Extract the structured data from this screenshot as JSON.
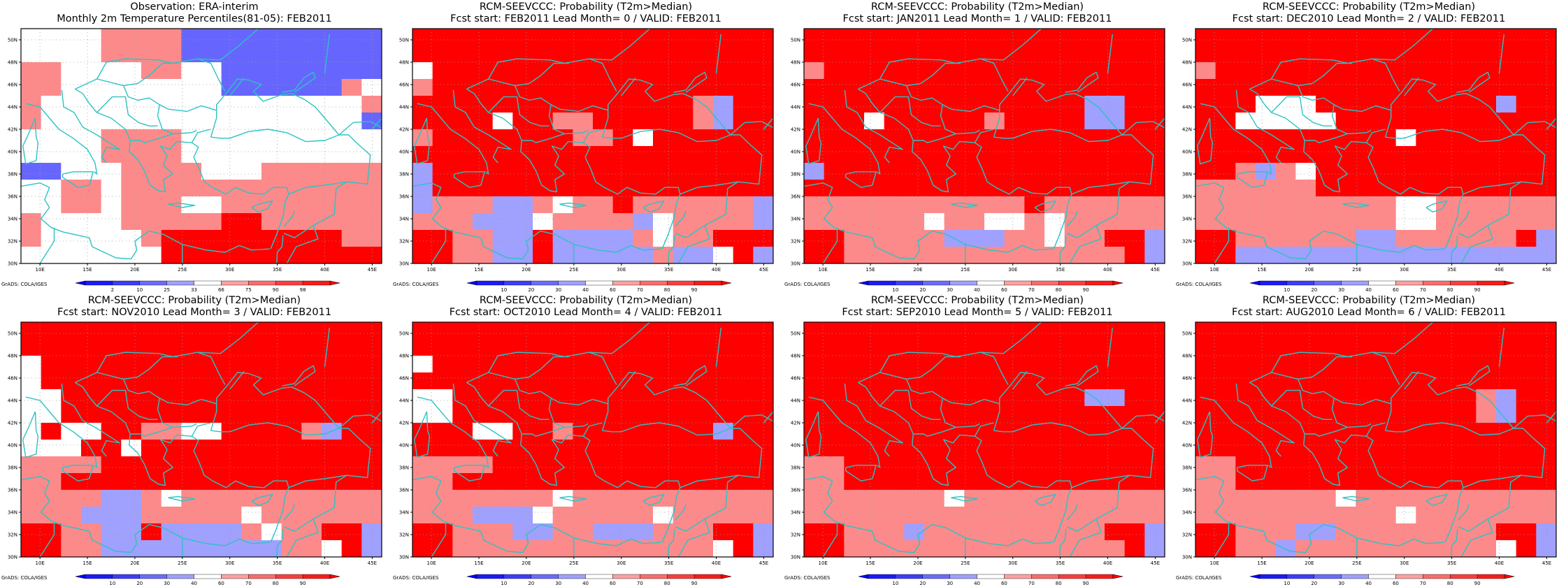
{
  "figure": {
    "panels": [
      {
        "title_line1": "Observation: ERA-interim",
        "title_line2": "Monthly 2m Temperature Percentiles(81-05): FEB2011",
        "colorbar_labels": [
          "2",
          "10",
          "25",
          "33",
          "66",
          "75",
          "90",
          "98"
        ],
        "colormap": "percentile",
        "grid": [
          "wwwwLLLLBBBBBBBBBB",
          "wwwwLLLLBBBBBBBBBB",
          "LLwwwwLLwwBBBBBBBB",
          "LLwwwwwwwwBBBBBBLw",
          "LwwwwwwwwwwwwwwwwL",
          "LwwwwwwwwwwwwwwwwB",
          "wwwwLLLLwwwwwwwwww",
          "wwwwLLLLwwwwwwwwww",
          "BBwwwLLLLwwwLLLLLL",
          "wwLLwLLLLLLLLLLLLL",
          "wwLLwLLLwwLLLLLLLL",
          "LwwwwLLLLLRRLLLLLL",
          "LwwwwwLRRRRRRRRRLL",
          "wwwwwwwRRRRRRRRRRR"
        ]
      },
      {
        "title_line1": "RCM-SEEVCCC: Probability (T2m>Median)",
        "title_line2": "Fcst start: FEB2011  Lead Month= 0 / VALID: FEB2011",
        "colorbar_labels": [
          "10",
          "20",
          "30",
          "40",
          "60",
          "70",
          "80",
          "90"
        ],
        "colormap": "probability",
        "grid": [
          "RRRRRRRRRRRRRRRRRR",
          "RRRRRRRRRRRRRRRRRR",
          "wRRRRRRRRRRRRRRRRR",
          "LRRRRRRRRRRRRRRRRR",
          "RRRRRRRRRRRRRRLBRR",
          "RRRRwRRLLRRRRRLBRR",
          "LRRRRRRRLLRwRRRRRR",
          "RRRRRRRRRRRRRRRRRR",
          "BRRRRRRRRRRRRRRRRR",
          "BRRRRRRRRRRRRRRRRR",
          "BLLLBBLwLLRLLLLLLB",
          "LLLBBBwLLLLBwLLLLB",
          "RRLLBBRBBBBLwLLRRR",
          "RRLLBBRBBBBBLBBwRB"
        ]
      },
      {
        "title_line1": "RCM-SEEVCCC: Probability (T2m>Median)",
        "title_line2": "Fcst start: JAN2011  Lead Month= 1 / VALID: FEB2011",
        "colorbar_labels": [
          "10",
          "20",
          "30",
          "40",
          "60",
          "70",
          "80",
          "90"
        ],
        "colormap": "probability",
        "grid": [
          "RRRRRRRRRRRRRRRRRR",
          "RRRRRRRRRRRRRRRRRR",
          "LRRRRRRRRRRRRRRRRR",
          "RRRRRRRRRRRRRRRRRR",
          "RRRRRRRRRRRRRRBBRR",
          "RRRwRRRRRLRRRRBBRR",
          "RRRRRRRRRRRRRRRRRR",
          "RRRRRRRRRRRRRRRRRR",
          "BRRRRRRRRRRRRRRRRR",
          "RRRRRRRRRRRRRRRRRR",
          "LLLLLLLLLLLRLLLLLL",
          "LLLLLLwLLwwLwLLLLL",
          "RRLLLLLBBBLLwLLRRB",
          "RRLLLLLLLLLLLLLLRB"
        ]
      },
      {
        "title_line1": "RCM-SEEVCCC: Probability (T2m>Median)",
        "title_line2": "Fcst start: DEC2010  Lead Month= 2 / VALID: FEB2011",
        "colorbar_labels": [
          "10",
          "20",
          "30",
          "40",
          "60",
          "70",
          "80",
          "90"
        ],
        "colormap": "probability",
        "grid": [
          "RRRRRRRRRRRRRRRRRR",
          "RRRRRRRRRRRRRRRRRR",
          "LRRRRRRRRRRRRRRRRR",
          "RRRRRRRRRRRRRRRRRR",
          "RRRwwwRRRRRRRRRBRR",
          "RRwwwwwRRRRRRRRRRR",
          "RRRRRRRRRRwRRRRRRR",
          "RRRRRRRRRRRRRRRRRR",
          "RRLBLwRRRRRRRRRRRR",
          "LLLLLLRRRRRRRRRRRR",
          "LLLLLLLLLLwwLLLLLL",
          "LLLLLLLLLLwwLLLLLL",
          "RRLLLLLLBBLLLLLLRB",
          "RRBBBBBBBBBBBBBBBB"
        ]
      },
      {
        "title_line1": "RCM-SEEVCCC: Probability (T2m>Median)",
        "title_line2": "Fcst start: NOV2010  Lead Month= 3 / VALID: FEB2011",
        "colorbar_labels": [
          "10",
          "20",
          "30",
          "40",
          "60",
          "70",
          "80",
          "90"
        ],
        "colormap": "probability",
        "grid": [
          "RRRRRRRRRRRRRRRRRR",
          "RRRRRRRRRRRRRRRRRR",
          "wRRRRRRRRRRRRRRRRR",
          "wRRRRRRRRRRRRRRRRR",
          "wwRRRRRRRRRRRRRRRR",
          "wwRRRRRRRRRRRRRRRR",
          "wRwwRRLLwwRRRRLBRR",
          "wwwRRwRRRRRRRRRRRR",
          "LLLLRRRRRRRRRRRRRR",
          "LLRRRRRRRRRRRRRRRR",
          "LLLLBBLwLLLLLLLLLL",
          "LLLBBBLLLLLwLLLLLL",
          "RRLLBBRBBBBLwLLRRB",
          "RRLLBBBBBBBBBLLwRB"
        ]
      },
      {
        "title_line1": "RCM-SEEVCCC: Probability (T2m>Median)",
        "title_line2": "Fcst start: OCT2010  Lead Month= 4 / VALID: FEB2011",
        "colorbar_labels": [
          "10",
          "20",
          "30",
          "40",
          "60",
          "70",
          "80",
          "90"
        ],
        "colormap": "probability",
        "grid": [
          "RRRRRRRRRRRRRRRRRR",
          "RRRRRRRRRRRRRRRRRR",
          "wRRRRRRRRRRRRRRRRR",
          "RRRRRRRRRRRRRRRRRR",
          "wwRRRRRRRRRRRRRRRR",
          "wwRRRRRRRRRRRRRRRR",
          "RRRwwRRLRRRRRRRBRR",
          "RRRRRRRRRRRRRRRRRR",
          "LLLLRRRRRRRRRRRRRR",
          "LLRRRRRRRRRRRRRRRR",
          "LLLLLLLwLLLLLLLLLL",
          "LLLBBBwLLLLLwLLLLL",
          "RRLLLBBLLBBBLLLRRB",
          "RRLLLLLLLLLLLLLwRB"
        ]
      },
      {
        "title_line1": "RCM-SEEVCCC: Probability (T2m>Median)",
        "title_line2": "Fcst start: SEP2010  Lead Month= 5 / VALID: FEB2011",
        "colorbar_labels": [
          "10",
          "20",
          "30",
          "40",
          "60",
          "70",
          "80",
          "90"
        ],
        "colormap": "probability",
        "grid": [
          "RRRRRRRRRRRRRRRRRR",
          "RRRRRRRRRRRRRRRRRR",
          "RRRRRRRRRRRRRRRRRR",
          "RRRRRRRRRRRRRRRRRR",
          "RRRRRRRRRRRRRRBBRR",
          "RRRRRRRRRRRRRRRRRR",
          "RRRRRRRRRRRRRRRRRR",
          "RRRRRRRRRRRRRRRRRR",
          "LLRRRRRRRRRRRRRRRR",
          "LLRRRRRRRRRRRRRRRR",
          "LLLLLLLwLLLLLLLLLL",
          "LLLLLLLLLLLLLLLLLL",
          "RRLLLBLLLLLLLLLRRB",
          "RRLLLLLLLLLLLLLLRB"
        ]
      },
      {
        "title_line1": "RCM-SEEVCCC: Probability (T2m>Median)",
        "title_line2": "Fcst start: AUG2010  Lead Month= 6 / VALID: FEB2011",
        "colorbar_labels": [
          "10",
          "20",
          "30",
          "40",
          "60",
          "70",
          "80",
          "90"
        ],
        "colormap": "probability",
        "grid": [
          "RRRRRRRRRRRRRRRRRR",
          "RRRRRRRRRRRRRRRRRR",
          "RRRRRRRRRRRRRRRRRR",
          "RRRRRRRRRRRRRRRRRR",
          "RRRRRRRRRRRRRRLBRR",
          "RRRRRRRRRRRRRRLBRR",
          "RRRRRRRRRRRRRRRRRR",
          "RRRRRRRRRRRRRRRRRR",
          "LLRRRRRRRRRRRRRRRR",
          "LLRRRRRRRRRRRRRRRR",
          "LLLLLLLwLLLLLLLLLL",
          "LLLLLLLLLLwLLLLLLL",
          "RRLLLBBLLLLLLLLRRB",
          "RRLLBLLLLLLLLLLwRB"
        ]
      }
    ],
    "lat_tick_labels": [
      "50N",
      "48N",
      "46N",
      "44N",
      "42N",
      "40N",
      "38N",
      "36N",
      "34N",
      "32N",
      "30N"
    ],
    "lon_tick_labels": [
      "10E",
      "15E",
      "20E",
      "25E",
      "30E",
      "35E",
      "40E",
      "45E"
    ],
    "grads_credit": "GrADS: COLA/IGES",
    "colors": {
      "strong_red": "#ff0000",
      "red": "#fb3030",
      "light_red": "#fd8a8a",
      "neutral": "#ffffff",
      "light_blue": "#a0a0ff",
      "blue": "#6666ff",
      "strong_blue": "#0000ff",
      "coastline": "#2cc3c3",
      "grid_dots": "#9a9a9a"
    }
  }
}
